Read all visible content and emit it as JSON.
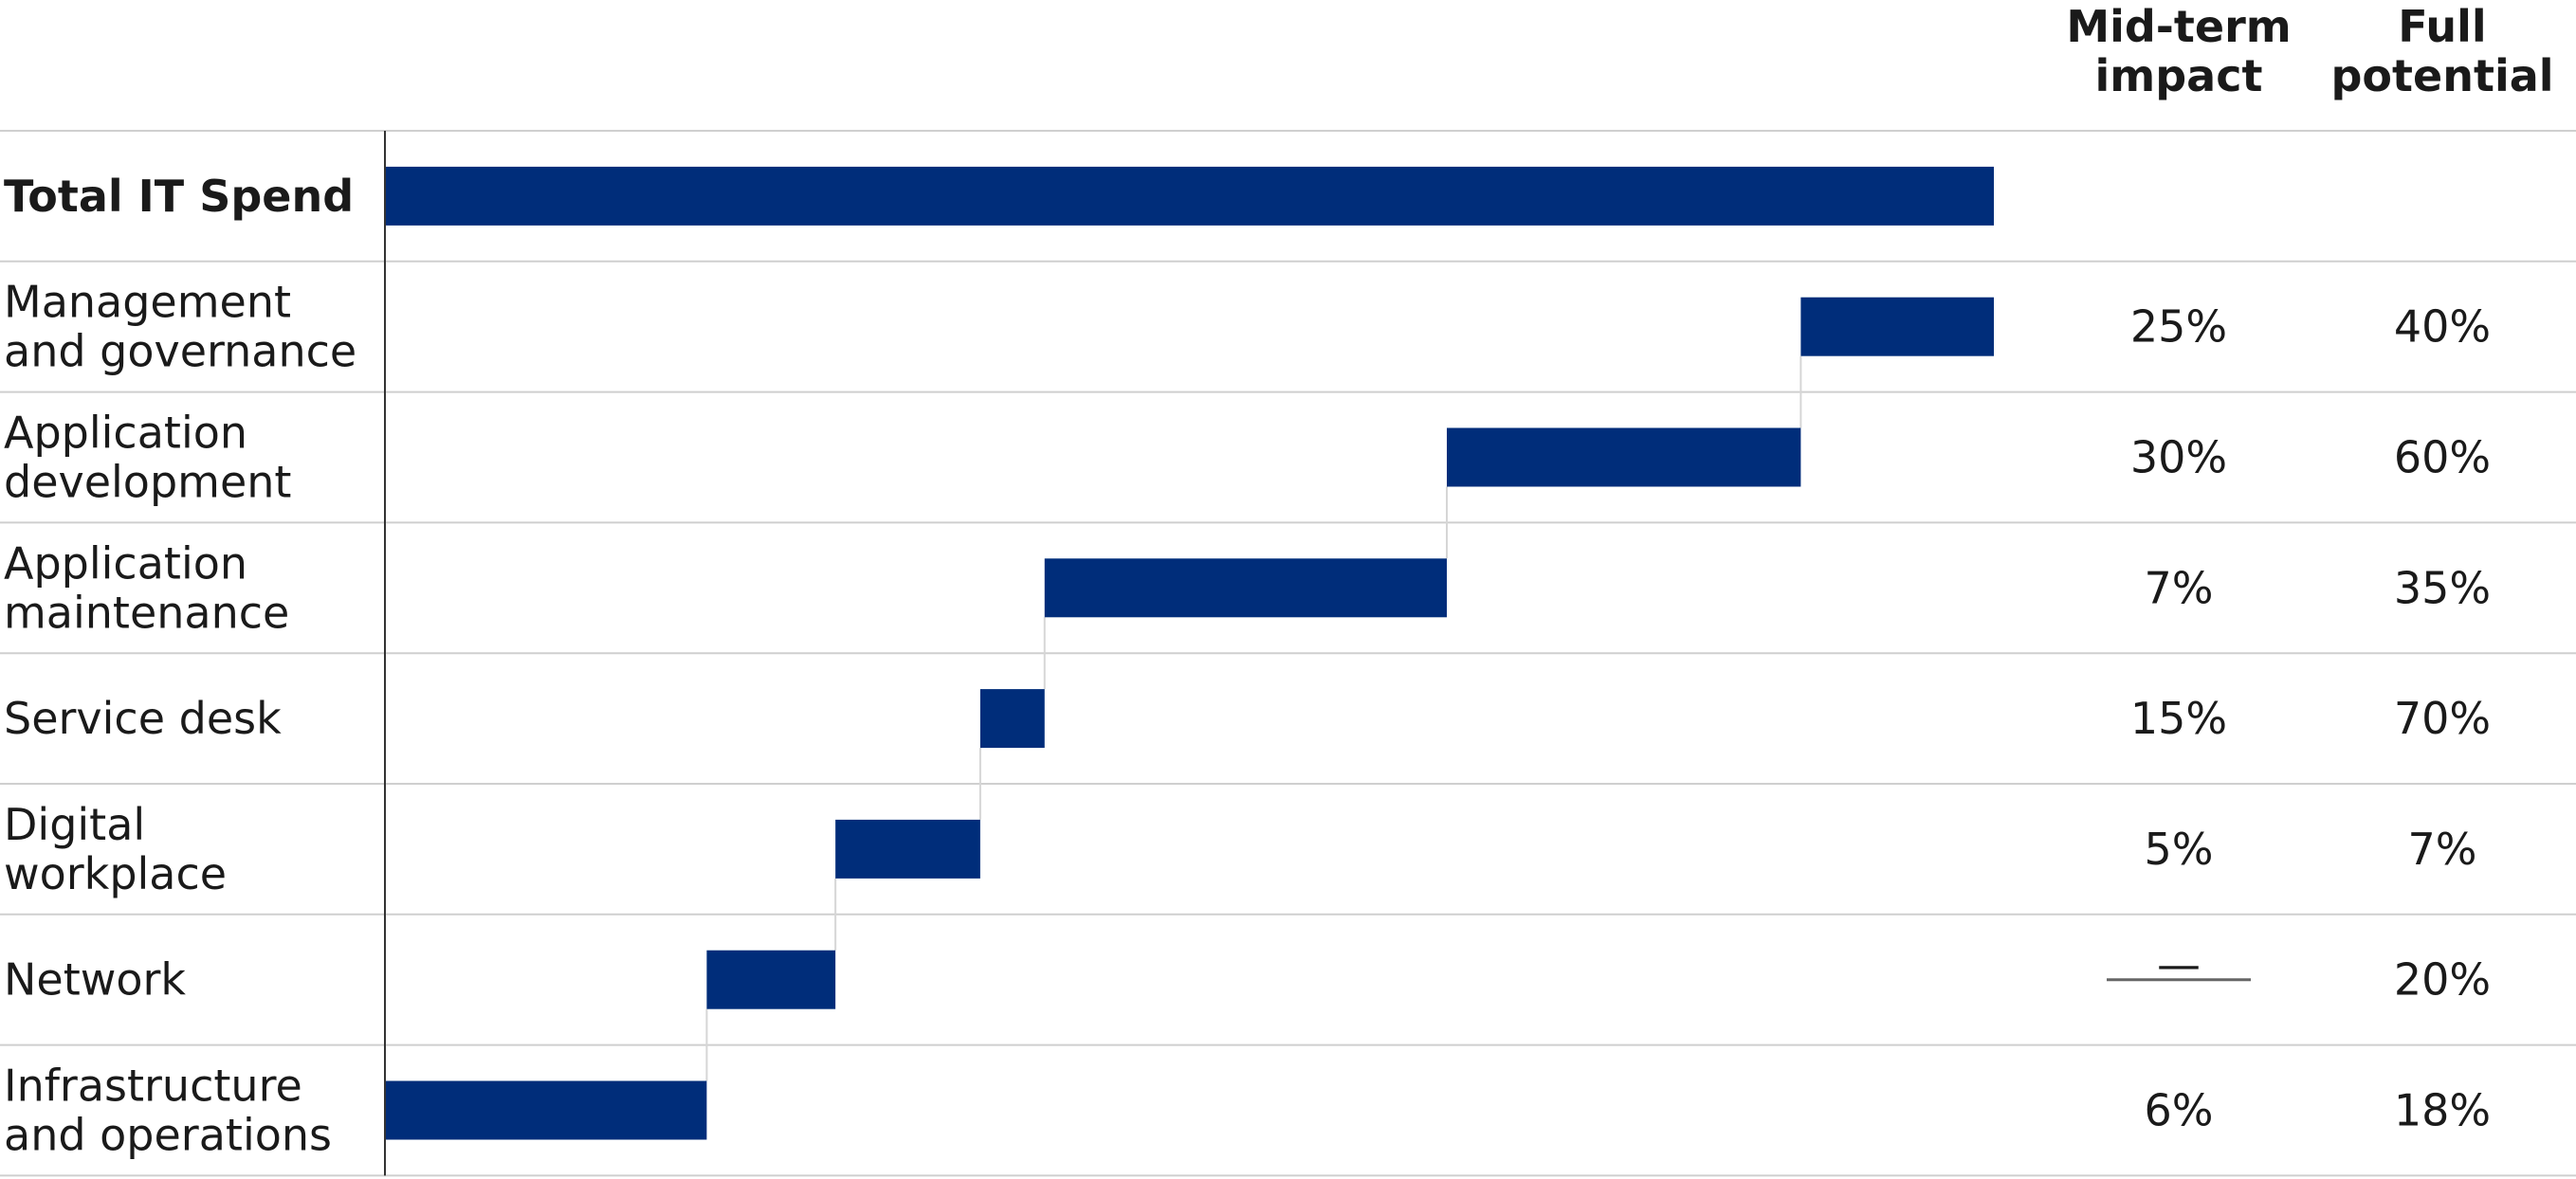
{
  "chart_data": {
    "type": "bar",
    "subtype": "waterfall",
    "columns": [
      "Mid-term impact",
      "Full potential"
    ],
    "rows": [
      {
        "category": "Total IT Spend",
        "start": 0,
        "end": 100,
        "mid_term": "",
        "full_potential": ""
      },
      {
        "category": "Management and governance",
        "start": 88,
        "end": 100,
        "mid_term": "25%",
        "full_potential": "40%"
      },
      {
        "category": "Application development",
        "start": 66,
        "end": 88,
        "mid_term": "30%",
        "full_potential": "60%"
      },
      {
        "category": "Application maintenance",
        "start": 41,
        "end": 66,
        "mid_term": "7%",
        "full_potential": "35%"
      },
      {
        "category": "Service desk",
        "start": 37,
        "end": 41,
        "mid_term": "15%",
        "full_potential": "70%"
      },
      {
        "category": "Digital workplace",
        "start": 28,
        "end": 37,
        "mid_term": "5%",
        "full_potential": "7%"
      },
      {
        "category": "Network",
        "start": 20,
        "end": 28,
        "mid_term": "—",
        "full_potential": "20%"
      },
      {
        "category": "Infrastructure and operations",
        "start": 0,
        "end": 20,
        "mid_term": "6%",
        "full_potential": "18%"
      }
    ],
    "xlim": [
      0,
      100
    ],
    "bar_color": "#002D7A",
    "grid": true,
    "legend": "none"
  }
}
